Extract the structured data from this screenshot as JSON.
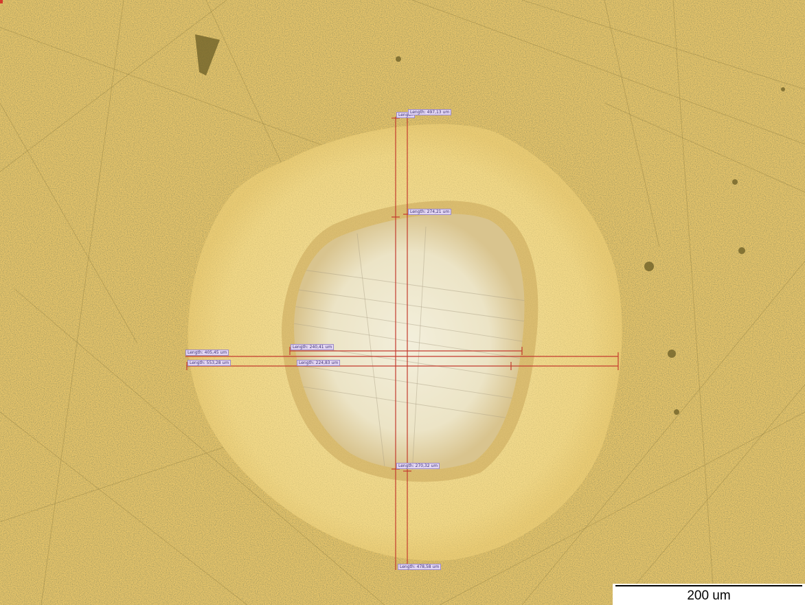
{
  "measurements": {
    "v_outer_left": "Length",
    "v_outer_right": "Length: 497,13 um",
    "v_inner_top": "Length: 274,21 um",
    "h_outer_top": "Length: 405,45 um",
    "h_outer_bottom": "Length: 553,28 um",
    "h_inner_top": "Length: 240,41 um",
    "h_inner_bottom": "Length: 224,83 um",
    "v_inner_bottom": "Length: 270,32 um",
    "v_outer_bottom": "Length: 478,58 um"
  },
  "scale_bar": {
    "label": "200 um"
  },
  "colors": {
    "substrate": "#e6c46a",
    "annulus": "#f3d98a",
    "bare_core": "#efe9cf",
    "measure_line": "#c33a2e"
  }
}
